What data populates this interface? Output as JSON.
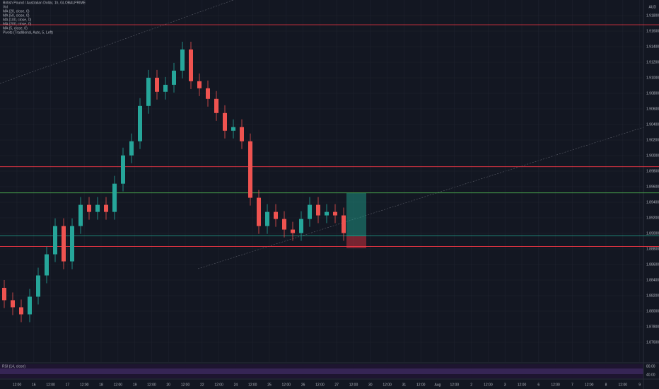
{
  "chart_data": {
    "type": "candlestick",
    "title": "British Pound / Australian Dollar, 1h, GLOBALPRIME",
    "indicators": [
      "Vol",
      "MA (20, close, 0)",
      "MA (50, close, 0)",
      "MA (100, close, 0)",
      "MA (200, close, 0)",
      "MA (5, close, 0)",
      "Pivots (Traditional, Auto, 5, Left)"
    ],
    "currency": "AUD",
    "rsi_label": "RSI (14, close)",
    "rsi_ticks": [
      "80.00",
      "40.00"
    ],
    "up_color": "#26a69a",
    "down_color": "#ef5350",
    "open": [
      1.883,
      1.88141,
      1.8805,
      1.87959,
      1.88186,
      1.88459,
      1.88731,
      1.89094,
      1.8864,
      1.89094,
      1.89367,
      1.89276,
      1.89367,
      1.89276,
      1.89639,
      1.90002,
      1.90184,
      1.90638,
      1.91001,
      1.9082,
      1.9091,
      1.91092,
      1.91364,
      1.90956,
      1.90865,
      1.90729,
      1.90547,
      1.9032,
      1.90366,
      1.90184,
      1.89458,
      1.89094,
      1.89276,
      1.89185,
      1.89049,
      1.89004,
      1.89185,
      1.89367,
      1.89231,
      1.89276,
      1.89231
    ],
    "high": [
      1.884,
      1.88241,
      1.8815,
      1.88286,
      1.88559,
      1.88831,
      1.89194,
      1.89194,
      1.89194,
      1.89467,
      1.89467,
      1.89467,
      1.89467,
      1.89739,
      1.90102,
      1.90284,
      1.90738,
      1.91101,
      1.91101,
      1.9101,
      1.91192,
      1.91464,
      1.91464,
      1.91056,
      1.90965,
      1.90829,
      1.90647,
      1.90466,
      1.90466,
      1.90284,
      1.89558,
      1.89376,
      1.89376,
      1.89285,
      1.89149,
      1.89285,
      1.89467,
      1.89467,
      1.89376,
      1.89376,
      1.89331
    ],
    "low": [
      1.88041,
      1.8795,
      1.87859,
      1.87859,
      1.88086,
      1.88359,
      1.88631,
      1.8854,
      1.8854,
      1.88994,
      1.89176,
      1.89176,
      1.89176,
      1.89176,
      1.89539,
      1.89902,
      1.90084,
      1.90538,
      1.9072,
      1.9072,
      1.9081,
      1.90992,
      1.90856,
      1.90765,
      1.90629,
      1.90447,
      1.9022,
      1.9022,
      1.90084,
      1.89358,
      1.88994,
      1.88994,
      1.89085,
      1.88949,
      1.88904,
      1.88904,
      1.89085,
      1.89131,
      1.89131,
      1.89131,
      1.88904
    ],
    "close": [
      1.88141,
      1.8805,
      1.87959,
      1.88186,
      1.88459,
      1.88731,
      1.89094,
      1.8864,
      1.89094,
      1.89367,
      1.89276,
      1.89367,
      1.89276,
      1.89639,
      1.90002,
      1.90184,
      1.90638,
      1.91001,
      1.9082,
      1.9091,
      1.91092,
      1.91364,
      1.90956,
      1.90865,
      1.90729,
      1.90547,
      1.9032,
      1.90366,
      1.90184,
      1.89458,
      1.89094,
      1.89276,
      1.89185,
      1.89049,
      1.89004,
      1.89185,
      1.89367,
      1.89231,
      1.89276,
      1.89231,
      1.89004
    ],
    "levels": [
      {
        "value": 1.91682,
        "color": "#f23645"
      },
      {
        "value": 1.89857,
        "color": "#f23645"
      },
      {
        "value": 1.89521,
        "color": "#4caf50"
      },
      {
        "value": 1.88967,
        "color": "#22ab94"
      },
      {
        "value": 1.88831,
        "color": "#f23645"
      }
    ],
    "ylim": [
      1.87345,
      1.92
    ],
    "yticks": [
      {
        "value": 1.876,
        "label": "1.87600"
      },
      {
        "value": 1.878,
        "label": "1.87800"
      },
      {
        "value": 1.88,
        "label": "1.88000"
      },
      {
        "value": 1.882,
        "label": "1.88200"
      },
      {
        "value": 1.884,
        "label": "1.88400"
      },
      {
        "value": 1.886,
        "label": "1.88600"
      },
      {
        "value": 1.888,
        "label": "1.88800"
      },
      {
        "value": 1.89,
        "label": "1.89000"
      },
      {
        "value": 1.892,
        "label": "1.89200"
      },
      {
        "value": 1.894,
        "label": "1.89400"
      },
      {
        "value": 1.896,
        "label": "1.89600"
      },
      {
        "value": 1.898,
        "label": "1.89800"
      },
      {
        "value": 1.9,
        "label": "1.90000"
      },
      {
        "value": 1.902,
        "label": "1.90200"
      },
      {
        "value": 1.904,
        "label": "1.90400"
      },
      {
        "value": 1.906,
        "label": "1.90600"
      },
      {
        "value": 1.908,
        "label": "1.90800"
      },
      {
        "value": 1.91,
        "label": "1.91000"
      },
      {
        "value": 1.912,
        "label": "1.91200"
      },
      {
        "value": 1.914,
        "label": "1.91400"
      },
      {
        "value": 1.916,
        "label": "1.91600"
      },
      {
        "value": 1.918,
        "label": "1.91800"
      }
    ],
    "time_labels": [
      "12:00",
      "16",
      "12:00",
      "17",
      "12:00",
      "18",
      "12:00",
      "19",
      "12:00",
      "20",
      "12:00",
      "22",
      "12:00",
      "24",
      "12:00",
      "25",
      "12:00",
      "26",
      "12:00",
      "27",
      "12:00",
      "30",
      "12:00",
      "31",
      "12:00",
      "Aug",
      "12:00",
      "2",
      "12:00",
      "3",
      "12:00",
      "6",
      "12:00",
      "7",
      "12:00",
      "8",
      "12:00",
      "9"
    ],
    "grid": true
  }
}
